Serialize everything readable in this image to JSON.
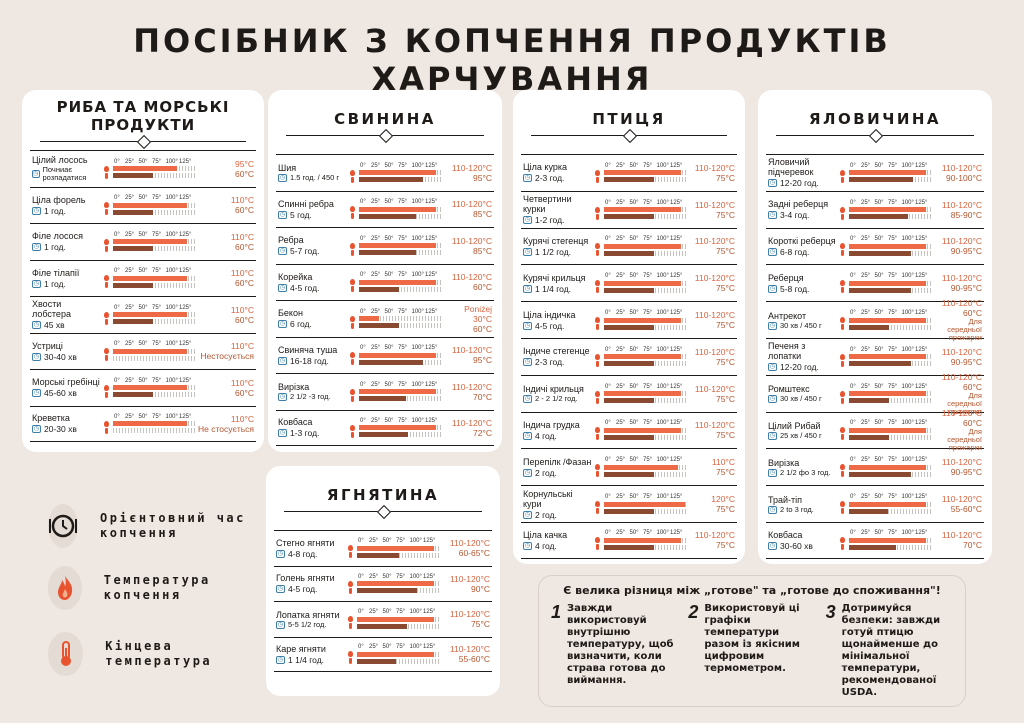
{
  "title": "ПОСІБНИК З КОПЧЕННЯ ПРОДУКТІВ ХАРЧУВАННЯ",
  "scale_labels": [
    "0°",
    "25°",
    "50°",
    "75°",
    "100°",
    "125°"
  ],
  "colors": {
    "background": "#efe7e1",
    "accent": "#ee6a46",
    "accent_dark": "#8a4a32",
    "temp_text": "#d8643f"
  },
  "cards": [
    {
      "id": "fish",
      "title": "РИБА ТА МОРСЬКІ ПРОДУКТИ",
      "rows": [
        {
          "name": "Цілий лосось",
          "time": "Почниає розпадатися",
          "smoke": "95°C",
          "final": "60°C",
          "smoke_pct": 0.76,
          "final_pct": 0.48
        },
        {
          "name": "Ціла форель",
          "time": "1 год.",
          "smoke": "110°C",
          "final": "60°C",
          "smoke_pct": 0.88,
          "final_pct": 0.48
        },
        {
          "name": "Філе лосося",
          "time": "1 год.",
          "smoke": "110°C",
          "final": "60°C",
          "smoke_pct": 0.88,
          "final_pct": 0.48
        },
        {
          "name": "Філе тілапії",
          "time": "1 год.",
          "smoke": "110°C",
          "final": "60°C",
          "smoke_pct": 0.88,
          "final_pct": 0.48
        },
        {
          "name": "Хвости лобстера",
          "time": "45 хв",
          "smoke": "110°C",
          "final": "60°C",
          "smoke_pct": 0.88,
          "final_pct": 0.48
        },
        {
          "name": "Устриці",
          "time": "30-40 хв",
          "smoke": "110°C",
          "final": "Нестосується",
          "smoke_pct": 0.88,
          "final_pct": 0
        },
        {
          "name": "Морські гребінці",
          "time": "45-60 хв",
          "smoke": "110°C",
          "final": "60°C",
          "smoke_pct": 0.88,
          "final_pct": 0.48
        },
        {
          "name": "Креветка",
          "time": "20-30 хв",
          "smoke": "110°C",
          "final": "Не стосується",
          "smoke_pct": 0.88,
          "final_pct": 0
        }
      ]
    },
    {
      "id": "pork",
      "title": "СВИНИНА",
      "rows": [
        {
          "name": "Шия",
          "time": "1.5 год. / 450 г",
          "smoke": "110-120°C",
          "final": "95°C",
          "smoke_pct": 0.92,
          "final_pct": 0.76
        },
        {
          "name": "Спинні ребра",
          "time": "5 год.",
          "smoke": "110-120°C",
          "final": "85°C",
          "smoke_pct": 0.92,
          "final_pct": 0.68
        },
        {
          "name": "Ребра",
          "time": "5-7 год.",
          "smoke": "110-120°C",
          "final": "85°C",
          "smoke_pct": 0.92,
          "final_pct": 0.68
        },
        {
          "name": "Корейка",
          "time": "4-5 год.",
          "smoke": "110-120°C",
          "final": "60°C",
          "smoke_pct": 0.92,
          "final_pct": 0.48
        },
        {
          "name": "Бекон",
          "time": "6 год.",
          "smoke": "Poniżej 30°C",
          "final": "60°C",
          "smoke_pct": 0.24,
          "final_pct": 0.48
        },
        {
          "name": "Свиняча туша",
          "time": "16-18 год.",
          "smoke": "110-120°C",
          "final": "95°C",
          "smoke_pct": 0.92,
          "final_pct": 0.76
        },
        {
          "name": "Вирізка",
          "time": "2 1/2 -3 год.",
          "smoke": "110-120°C",
          "final": "70°C",
          "smoke_pct": 0.92,
          "final_pct": 0.56
        },
        {
          "name": "Ковбаса",
          "time": "1-3 год.",
          "smoke": "110-120°C",
          "final": "72°C",
          "smoke_pct": 0.92,
          "final_pct": 0.58
        }
      ]
    },
    {
      "id": "poultry",
      "title": "ПТИЦЯ",
      "rows": [
        {
          "name": "Ціла курка",
          "time": "2-3 год.",
          "smoke": "110-120°C",
          "final": "75°C",
          "smoke_pct": 0.92,
          "final_pct": 0.6
        },
        {
          "name": "Четвертини курки",
          "time": "1-2 год.",
          "smoke": "110-120°C",
          "final": "75°C",
          "smoke_pct": 0.92,
          "final_pct": 0.6
        },
        {
          "name": "Курячі стегенця",
          "time": "1 1/2 год.",
          "smoke": "110-120°C",
          "final": "75°C",
          "smoke_pct": 0.92,
          "final_pct": 0.6
        },
        {
          "name": "Курячі крильця",
          "time": "1 1/4 год.",
          "smoke": "110-120°C",
          "final": "75°C",
          "smoke_pct": 0.92,
          "final_pct": 0.6
        },
        {
          "name": "Ціла індичка",
          "time": "4-5 год.",
          "smoke": "110-120°C",
          "final": "75°C",
          "smoke_pct": 0.92,
          "final_pct": 0.6
        },
        {
          "name": "Індиче стегенце",
          "time": "2-3 год.",
          "smoke": "110-120°C",
          "final": "75°C",
          "smoke_pct": 0.92,
          "final_pct": 0.6
        },
        {
          "name": "Індичі крильця",
          "time": "2 - 2 1/2 год.",
          "smoke": "110-120°C",
          "final": "75°C",
          "smoke_pct": 0.92,
          "final_pct": 0.6
        },
        {
          "name": "Індича грудка",
          "time": "4 год.",
          "smoke": "110-120°C",
          "final": "75°C",
          "smoke_pct": 0.92,
          "final_pct": 0.6
        },
        {
          "name": "Перепілк /Фазан",
          "time": "2 год.",
          "smoke": "110°C",
          "final": "75°C",
          "smoke_pct": 0.88,
          "final_pct": 0.6
        },
        {
          "name": "Корнульські кури",
          "time": "2 год.",
          "smoke": "120°C",
          "final": "75°C",
          "smoke_pct": 0.96,
          "final_pct": 0.6
        },
        {
          "name": "Ціла качка",
          "time": "4 год.",
          "smoke": "110-120°C",
          "final": "75°C",
          "smoke_pct": 0.92,
          "final_pct": 0.6
        }
      ]
    },
    {
      "id": "beef",
      "title": "ЯЛОВИЧИНА",
      "rows": [
        {
          "name": "Яловичий підчеревок",
          "time": "12-20 год.",
          "smoke": "110-120°C",
          "final": "90-100°C",
          "smoke_pct": 0.92,
          "final_pct": 0.76
        },
        {
          "name": "Задні реберця",
          "time": "3-4 год.",
          "smoke": "110-120°C",
          "final": "85-90°C",
          "smoke_pct": 0.92,
          "final_pct": 0.7
        },
        {
          "name": "Короткі реберця",
          "time": "6-8 год.",
          "smoke": "110-120°C",
          "final": "90-95°C",
          "smoke_pct": 0.92,
          "final_pct": 0.74
        },
        {
          "name": "Реберця",
          "time": "5-8 год.",
          "smoke": "110-120°C",
          "final": "90-95°C",
          "smoke_pct": 0.92,
          "final_pct": 0.74
        },
        {
          "name": "Антрекот",
          "time": "30 хв / 450 г",
          "smoke": "110-120°C",
          "final": "60°C",
          "final2": "Для середньої прожарки",
          "smoke_pct": 0.92,
          "final_pct": 0.48
        },
        {
          "name": "Печеня з лопатки",
          "time": "12-20 год.",
          "smoke": "110-120°C",
          "final": "90-95°C",
          "smoke_pct": 0.92,
          "final_pct": 0.74
        },
        {
          "name": "Ромштекс",
          "time": "30 хв / 450 г",
          "smoke": "110-120°C",
          "final": "60°C",
          "final2": "Для середньої прожарки",
          "smoke_pct": 0.92,
          "final_pct": 0.48
        },
        {
          "name": "Цілий Рибай",
          "time": "25 хв / 450 г",
          "smoke": "110-120°C",
          "final": "60°C",
          "final2": "Для середньої прожарки",
          "smoke_pct": 0.92,
          "final_pct": 0.48
        },
        {
          "name": "Вирізка",
          "time": "2 1/2 фо 3 год.",
          "smoke": "110-120°C",
          "final": "90-95°C",
          "smoke_pct": 0.92,
          "final_pct": 0.74
        },
        {
          "name": "Трай-тіп",
          "time": "2 to 3 год.",
          "smoke": "110-120°C",
          "final": "55-60°C",
          "smoke_pct": 0.92,
          "final_pct": 0.46
        },
        {
          "name": "Ковбаса",
          "time": "30-60 хв",
          "smoke": "110-120°C",
          "final": "70°C",
          "smoke_pct": 0.92,
          "final_pct": 0.56
        }
      ]
    },
    {
      "id": "lamb",
      "title": "ЯГНЯТИНА",
      "rows": [
        {
          "name": "Стегно ягняти",
          "time": "4-8 год.",
          "smoke": "110-120°C",
          "final": "60-65°C",
          "smoke_pct": 0.92,
          "final_pct": 0.5
        },
        {
          "name": "Голень ягняти",
          "time": "4-5 год.",
          "smoke": "110-120°C",
          "final": "90°C",
          "smoke_pct": 0.92,
          "final_pct": 0.72
        },
        {
          "name": "Лопатка ягняти",
          "time": "5-5 1/2 год.",
          "smoke": "110-120°C",
          "final": "75°C",
          "smoke_pct": 0.92,
          "final_pct": 0.6
        },
        {
          "name": "Каре ягняти",
          "time": "1 1/4 год.",
          "smoke": "110-120°C",
          "final": "55-60°C",
          "smoke_pct": 0.92,
          "final_pct": 0.46
        }
      ]
    }
  ],
  "legend": [
    {
      "icon": "clock-plate-icon",
      "label": "Орієнтовний час копчення"
    },
    {
      "icon": "flame-icon",
      "label": "Температура копчення"
    },
    {
      "icon": "thermometer-icon",
      "label": "Кінцева температура"
    }
  ],
  "notes": {
    "title": "Є велика різниця між „готове\" та „готове до споживання\"!",
    "tips": [
      {
        "num": "1",
        "text": "Завжди використовуй внутрішню температуру, щоб визначити, коли страва готова до виймання."
      },
      {
        "num": "2",
        "text": "Використовуй ці графіки температури разом із якісним цифровим термометром."
      },
      {
        "num": "3",
        "text": "Дотримуйся безпеки: завжди готуй птицю щонайменше до мінімальної температури, рекомендованої USDA."
      }
    ]
  }
}
